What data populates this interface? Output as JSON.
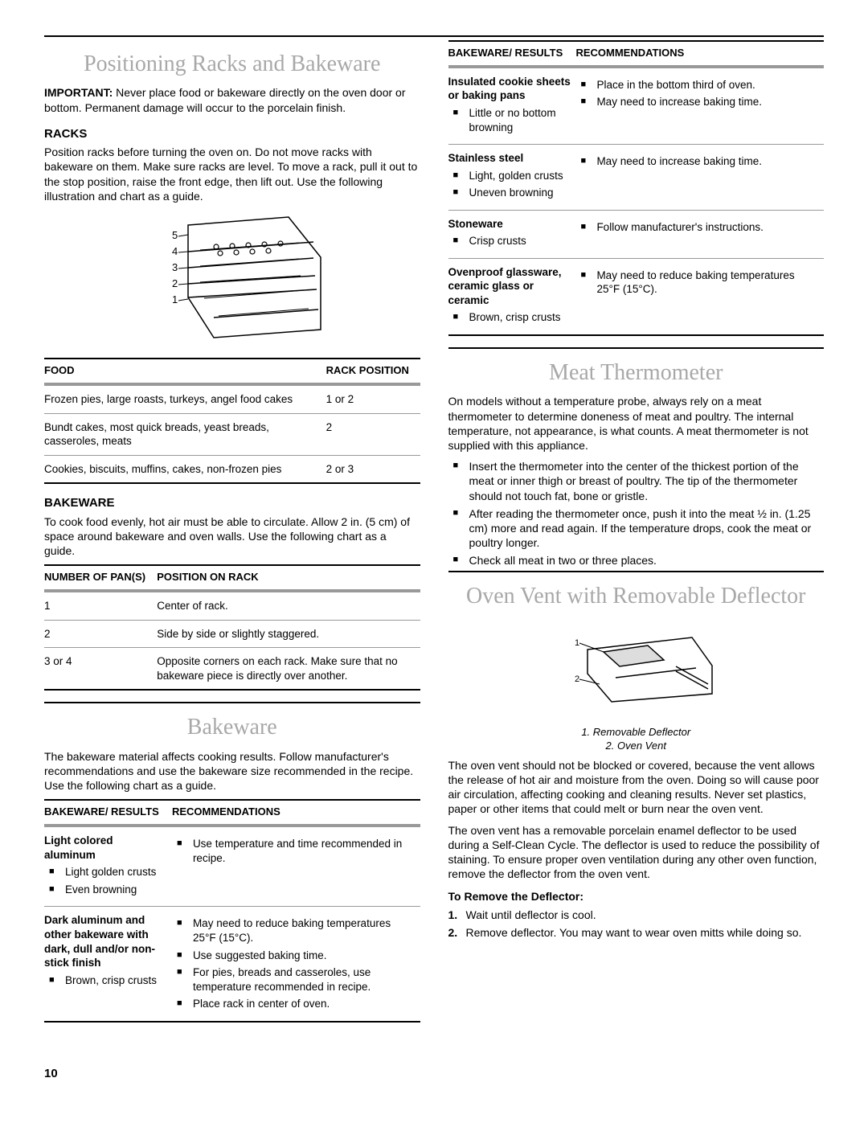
{
  "left": {
    "section1_title": "Positioning Racks and Bakeware",
    "important": "IMPORTANT:",
    "important_text": " Never place food or bakeware directly on the oven door or bottom. Permanent damage will occur to the porcelain finish.",
    "racks_heading": "RACKS",
    "racks_text": "Position racks before turning the oven on. Do not move racks with bakeware on them. Make sure racks are level. To move a rack, pull it out to the stop position, raise the front edge, then lift out. Use the following illustration and chart as a guide.",
    "rack_table": {
      "h1": "FOOD",
      "h2": "RACK POSITION",
      "rows": [
        {
          "food": "Frozen pies, large roasts, turkeys, angel food cakes",
          "pos": "1 or 2"
        },
        {
          "food": "Bundt cakes, most quick breads, yeast breads, casseroles, meats",
          "pos": "2"
        },
        {
          "food": "Cookies, biscuits, muffins, cakes, non-frozen pies",
          "pos": "2 or 3"
        }
      ]
    },
    "bakeware_heading": "BAKEWARE",
    "bakeware_text": "To cook food evenly, hot air must be able to circulate. Allow 2 in. (5 cm) of space around bakeware and oven walls. Use the following chart as a guide.",
    "pans_table": {
      "h1": "NUMBER OF PAN(S)",
      "h2": "POSITION ON RACK",
      "rows": [
        {
          "n": "1",
          "p": "Center of rack."
        },
        {
          "n": "2",
          "p": "Side by side or slightly staggered."
        },
        {
          "n": "3 or 4",
          "p": "Opposite corners on each rack. Make sure that no bakeware piece is directly over another."
        }
      ]
    },
    "section2_title": "Bakeware",
    "section2_text": "The bakeware material affects cooking results. Follow manufacturer's recommendations and use the bakeware size recommended in the recipe. Use the following chart as a guide.",
    "rec_h1": "BAKEWARE/ RESULTS",
    "rec_h2": "RECOMMENDATIONS",
    "rec_rows_left": [
      {
        "title": "Light colored aluminum",
        "bullets": [
          "Light golden crusts",
          "Even browning"
        ],
        "recs": [
          "Use temperature and time recommended in recipe."
        ]
      },
      {
        "title": "Dark aluminum and other bakeware with dark, dull and/or non-stick finish",
        "bullets": [
          "Brown, crisp crusts"
        ],
        "recs": [
          "May need to reduce baking temperatures 25°F (15°C).",
          "Use suggested baking time.",
          "For pies, breads and casseroles, use temperature recommended in recipe.",
          "Place rack in center of oven."
        ]
      }
    ]
  },
  "right": {
    "rec_h1": "BAKEWARE/ RESULTS",
    "rec_h2": "RECOMMENDATIONS",
    "rec_rows_right": [
      {
        "title": "Insulated cookie sheets or baking pans",
        "bullets": [
          "Little or no bottom browning"
        ],
        "recs": [
          "Place in the bottom third of oven.",
          "May need to increase baking time."
        ]
      },
      {
        "title": "Stainless steel",
        "bullets": [
          "Light, golden crusts",
          "Uneven browning"
        ],
        "recs": [
          "May need to increase baking time."
        ]
      },
      {
        "title": "Stoneware",
        "bullets": [
          "Crisp crusts"
        ],
        "recs": [
          "Follow manufacturer's instructions."
        ]
      },
      {
        "title": "Ovenproof glassware, ceramic glass or ceramic",
        "bullets": [
          "Brown, crisp crusts"
        ],
        "recs": [
          "May need to reduce baking temperatures 25°F (15°C)."
        ]
      }
    ],
    "meat_title": "Meat Thermometer",
    "meat_text": "On models without a temperature probe, always rely on a meat thermometer to determine doneness of meat and poultry. The internal temperature, not appearance, is what counts. A meat thermometer is not supplied with this appliance.",
    "meat_bullets": [
      "Insert the thermometer into the center of the thickest portion of the meat or inner thigh or breast of poultry. The tip of the thermometer should not touch fat, bone or gristle.",
      "After reading the thermometer once, push it into the meat ½ in. (1.25 cm) more and read again. If the temperature drops, cook the meat or poultry longer.",
      "Check all meat in two or three places."
    ],
    "vent_title": "Oven Vent with Removable Deflector",
    "vent_caption": "1. Removable Deflector\n2. Oven Vent",
    "vent_text1": "The oven vent should not be blocked or covered, because the vent allows the release of hot air and moisture from the oven. Doing so will cause poor air circulation, affecting cooking and cleaning results. Never set plastics, paper or other items that could melt or burn near the oven vent.",
    "vent_text2": "The oven vent has a removable porcelain enamel deflector to be used during a Self-Clean Cycle. The deflector is used to reduce the possibility of staining. To ensure proper oven ventilation during any other oven function, remove the deflector from the oven vent.",
    "remove_heading": "To Remove the Deflector:",
    "remove_steps": [
      "Wait until deflector is cool.",
      "Remove deflector. You may want to wear oven mitts while doing so."
    ]
  },
  "page_number": "10"
}
